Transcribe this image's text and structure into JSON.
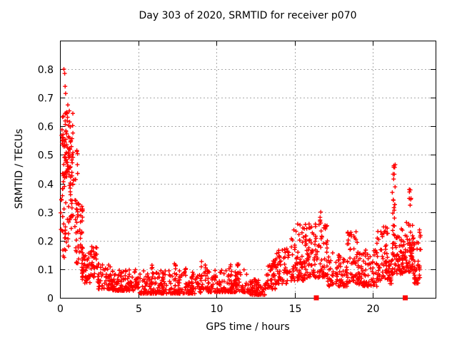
{
  "chart_data": {
    "type": "scatter",
    "title": "Day 303 of 2020, SRMTID for receiver p070",
    "xlabel": "GPS time / hours",
    "ylabel": "SRMTID / TECUs",
    "xlim": [
      0,
      24
    ],
    "ylim": [
      0,
      0.9
    ],
    "grid": true,
    "legend": "none",
    "xticks": [
      {
        "v": 0,
        "label": "0"
      },
      {
        "v": 5,
        "label": "5"
      },
      {
        "v": 10,
        "label": "10"
      },
      {
        "v": 15,
        "label": "15"
      },
      {
        "v": 20,
        "label": "20"
      }
    ],
    "yticks": [
      {
        "v": 0.0,
        "label": "0"
      },
      {
        "v": 0.1,
        "label": "0.1"
      },
      {
        "v": 0.2,
        "label": "0.2"
      },
      {
        "v": 0.3,
        "label": "0.3"
      },
      {
        "v": 0.4,
        "label": "0.4"
      },
      {
        "v": 0.5,
        "label": "0.5"
      },
      {
        "v": 0.6,
        "label": "0.6"
      },
      {
        "v": 0.7,
        "label": "0.7"
      },
      {
        "v": 0.8,
        "label": "0.8"
      }
    ],
    "colors": {
      "points": "#ff0000",
      "grid": "#a8a8a8",
      "axis": "#000000",
      "background": "#ffffff"
    },
    "series": [
      {
        "name": "SRMTID",
        "marker": "plus",
        "color": "#ff0000",
        "density_segments": [
          [
            0.05,
            0.45,
            26,
            0.28,
            0.56,
            1.0
          ],
          [
            0.1,
            0.85,
            60,
            0.42,
            0.665,
            0.9
          ],
          [
            0.05,
            0.55,
            20,
            0.08,
            0.28,
            1.0
          ],
          [
            0.55,
            1.15,
            48,
            0.24,
            0.53,
            1.2
          ],
          [
            0.95,
            1.45,
            45,
            0.12,
            0.33,
            1.2
          ],
          [
            1.35,
            2.0,
            50,
            0.05,
            0.16,
            1.3
          ],
          [
            1.95,
            2.4,
            30,
            0.07,
            0.19,
            1.2
          ],
          [
            2.4,
            3.3,
            60,
            0.03,
            0.12,
            1.6
          ],
          [
            3.3,
            5.0,
            115,
            0.025,
            0.1,
            2.0
          ],
          [
            5.0,
            9.0,
            250,
            0.015,
            0.095,
            2.2
          ],
          [
            5.85,
            5.95,
            3,
            0.095,
            0.115,
            1.0
          ],
          [
            7.25,
            7.4,
            4,
            0.095,
            0.125,
            1.0
          ],
          [
            8.0,
            8.1,
            2,
            0.095,
            0.11,
            1.0
          ],
          [
            9.0,
            9.45,
            25,
            0.03,
            0.13,
            1.6
          ],
          [
            9.45,
            12.1,
            160,
            0.02,
            0.1,
            2.2
          ],
          [
            10.8,
            10.92,
            3,
            0.1,
            0.125,
            1.0
          ],
          [
            11.25,
            11.45,
            4,
            0.1,
            0.12,
            1.0
          ],
          [
            12.1,
            13.1,
            70,
            0.01,
            0.065,
            1.8
          ],
          [
            13.1,
            13.8,
            50,
            0.03,
            0.145,
            1.6
          ],
          [
            13.8,
            14.7,
            60,
            0.05,
            0.175,
            1.5
          ],
          [
            14.7,
            15.7,
            80,
            0.06,
            0.26,
            1.8
          ],
          [
            15.7,
            17.1,
            110,
            0.07,
            0.27,
            1.8
          ],
          [
            16.62,
            16.78,
            8,
            0.2,
            0.31,
            1.0
          ],
          [
            17.1,
            18.35,
            75,
            0.04,
            0.16,
            1.5
          ],
          [
            18.35,
            19.05,
            55,
            0.05,
            0.235,
            1.7
          ],
          [
            19.05,
            20.25,
            85,
            0.04,
            0.17,
            1.5
          ],
          [
            20.25,
            20.95,
            60,
            0.06,
            0.25,
            1.7
          ],
          [
            20.95,
            21.2,
            22,
            0.05,
            0.13,
            1.4
          ],
          [
            21.22,
            21.42,
            20,
            0.24,
            0.475,
            1.0
          ],
          [
            21.2,
            22.05,
            75,
            0.08,
            0.245,
            1.5
          ],
          [
            22.05,
            22.55,
            60,
            0.09,
            0.27,
            1.5
          ],
          [
            22.3,
            22.45,
            7,
            0.28,
            0.385,
            1.0
          ],
          [
            22.55,
            23.05,
            48,
            0.05,
            0.24,
            1.6
          ]
        ],
        "outlier_points": [
          [
            0.25,
            0.8
          ],
          [
            0.3,
            0.785
          ],
          [
            0.33,
            0.74
          ],
          [
            0.36,
            0.715
          ],
          [
            0.5,
            0.675
          ],
          [
            9.05,
            0.127
          ],
          [
            13.85,
            0.155
          ]
        ]
      },
      {
        "name": "flags",
        "marker": "filled-square",
        "color": "#ff0000",
        "points": [
          [
            16.38,
            0
          ],
          [
            22.06,
            0
          ]
        ]
      }
    ]
  }
}
